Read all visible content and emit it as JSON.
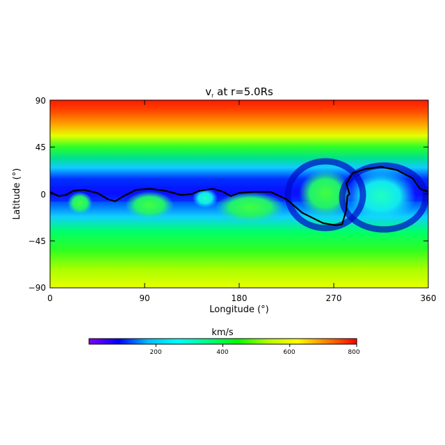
{
  "chart_data": {
    "type": "heatmap",
    "title": "v",
    "title_subscript": "r",
    "title_suffix": " at r=5.0Rs",
    "xlabel": "Longitude (°)",
    "ylabel": "Latitude (°)",
    "xlim": [
      0,
      360
    ],
    "ylim": [
      -90,
      90
    ],
    "xticks": [
      "0",
      "90",
      "180",
      "270",
      "360"
    ],
    "yticks": [
      "90",
      "45",
      "0",
      "−45",
      "−90"
    ],
    "colorbar": {
      "label": "km/s",
      "range": [
        0,
        800
      ],
      "ticks": [
        "200",
        "400",
        "600",
        "800"
      ],
      "colors": [
        "#7f00ff",
        "#0000ff",
        "#00bfff",
        "#00ffff",
        "#00ff7f",
        "#00ff00",
        "#b2ff00",
        "#ffff00",
        "#ff7f00",
        "#ff0000"
      ]
    },
    "neutral_line": [
      [
        0,
        2
      ],
      [
        8,
        -2
      ],
      [
        15,
        -1
      ],
      [
        22,
        3
      ],
      [
        32,
        4
      ],
      [
        45,
        1
      ],
      [
        55,
        -5
      ],
      [
        62,
        -7
      ],
      [
        70,
        -2
      ],
      [
        82,
        4
      ],
      [
        95,
        5
      ],
      [
        110,
        3
      ],
      [
        125,
        -1
      ],
      [
        135,
        0
      ],
      [
        142,
        3
      ],
      [
        155,
        5
      ],
      [
        165,
        2
      ],
      [
        172,
        -2
      ],
      [
        180,
        1
      ],
      [
        195,
        2
      ],
      [
        210,
        2
      ],
      [
        225,
        -5
      ],
      [
        240,
        -18
      ],
      [
        260,
        -28
      ],
      [
        272,
        -30
      ],
      [
        278,
        -29
      ],
      [
        282,
        -15
      ],
      [
        283,
        -2
      ],
      [
        285,
        0
      ],
      [
        282,
        10
      ],
      [
        288,
        20
      ],
      [
        300,
        24
      ],
      [
        315,
        26
      ],
      [
        330,
        23
      ],
      [
        345,
        15
      ],
      [
        352,
        5
      ],
      [
        360,
        2
      ]
    ]
  }
}
